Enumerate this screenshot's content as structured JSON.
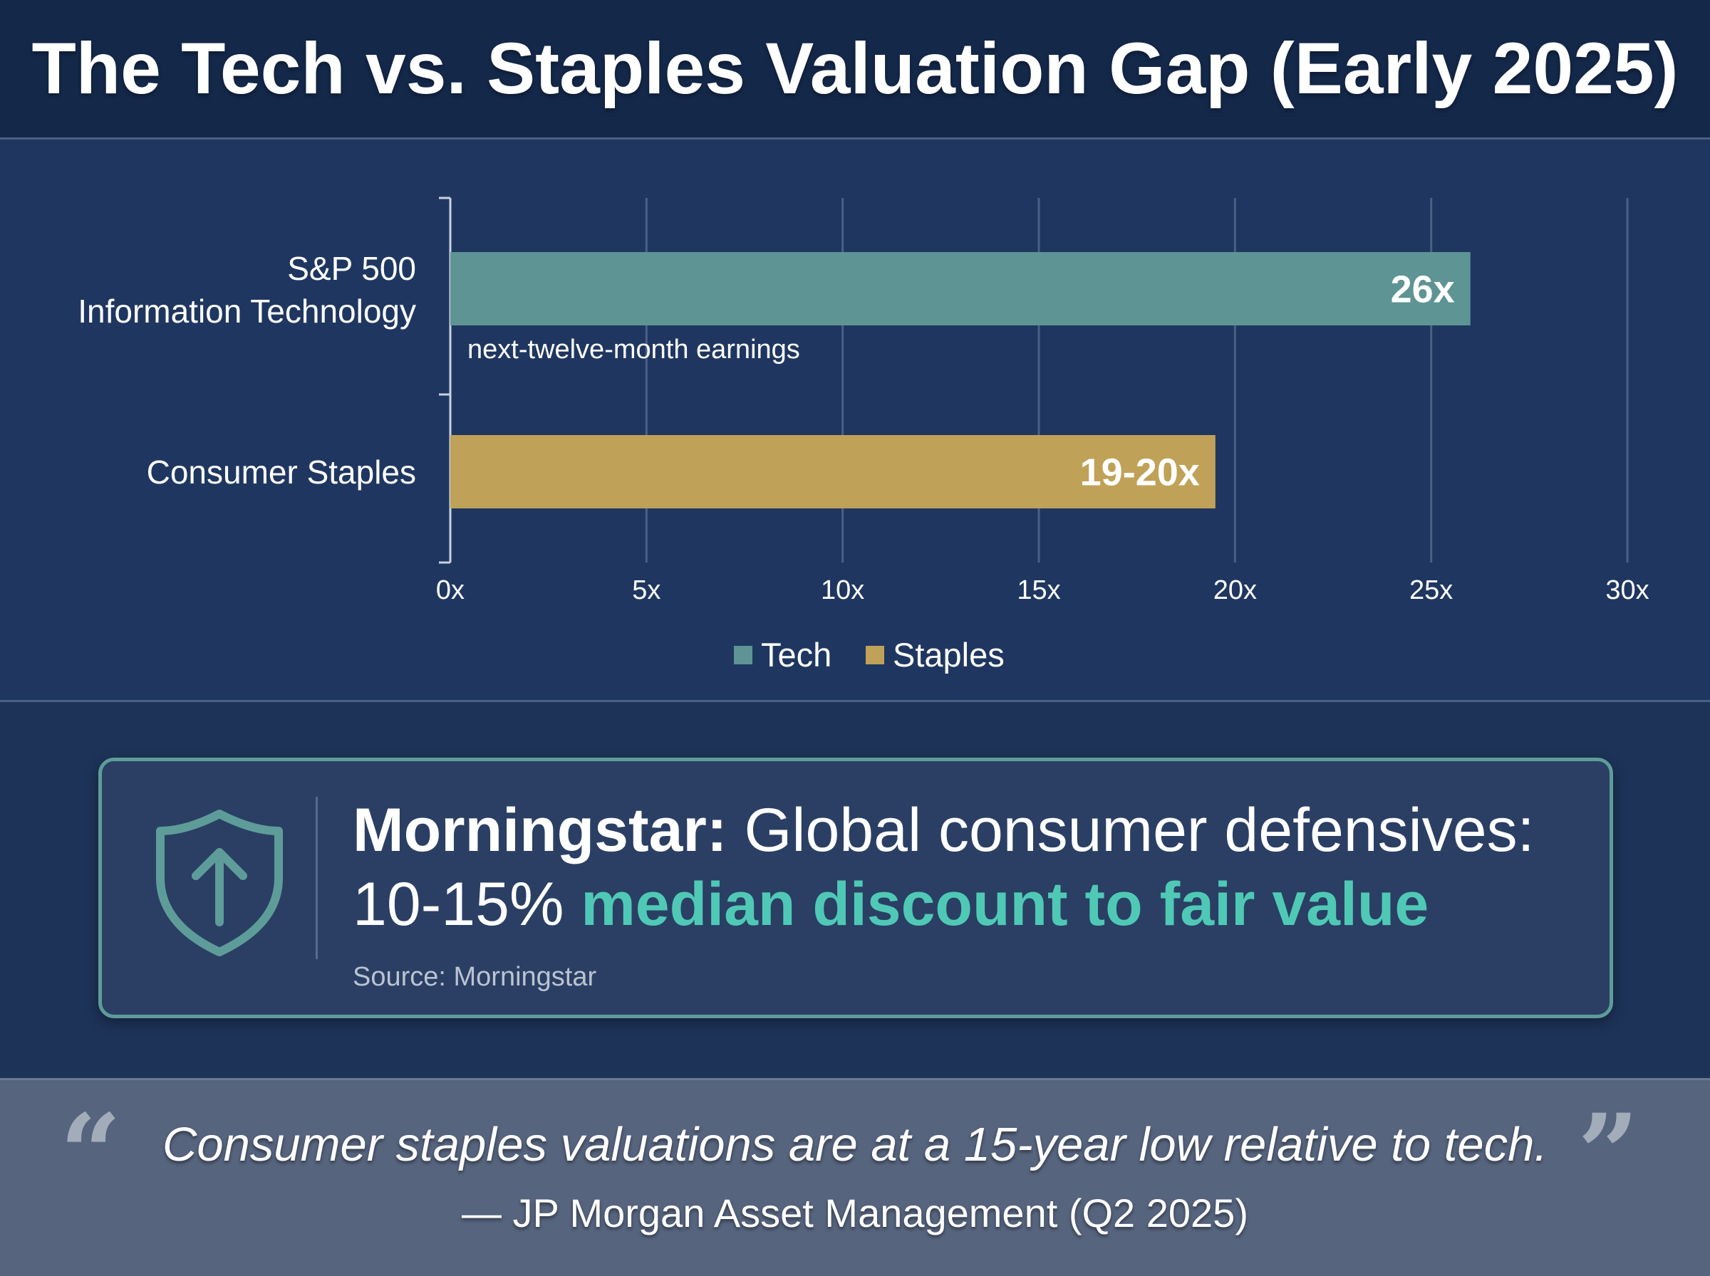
{
  "title": "The Tech vs. Staples Valuation Gap (Early 2025)",
  "colors": {
    "tech": "#5e9493",
    "staples": "#bfa257",
    "accent": "#4fc9b6",
    "grid": "#4a6085",
    "axis": "#c9d2df"
  },
  "chart_data": {
    "type": "bar",
    "orientation": "horizontal",
    "categories": [
      "S&P 500\nInformation Technology",
      "Consumer Staples"
    ],
    "series": [
      {
        "name": "Tech",
        "values": [
          26,
          null
        ]
      },
      {
        "name": "Staples",
        "values": [
          null,
          19.5
        ]
      }
    ],
    "value_labels": [
      "26x",
      "19-20x"
    ],
    "annotation": "next-twelve-month earnings",
    "xticks": [
      "0x",
      "5x",
      "10x",
      "15x",
      "20x",
      "25x",
      "30x"
    ],
    "xlim": [
      0,
      30
    ],
    "grid": true,
    "legend": [
      "Tech",
      "Staples"
    ],
    "legend_position": "bottom-center"
  },
  "callout": {
    "icon": "shield-arrow-up-icon",
    "label_strong": "Morningstar:",
    "label_rest": "Global consumer defensives:",
    "value": "10-15%",
    "highlight": "median discount to fair value",
    "source": "Source: Morningstar"
  },
  "quote": {
    "open_mark": "“",
    "text": "Consumer staples valuations are at a 15-year low relative to tech.",
    "close_mark": "”",
    "attribution": "— JP Morgan Asset Management (Q2 2025)"
  }
}
